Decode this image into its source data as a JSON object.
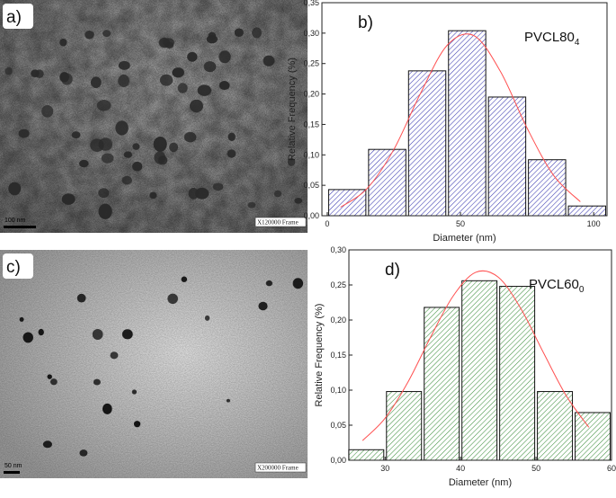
{
  "panels": [
    {
      "label": "a)",
      "scale_bar": "100 nm",
      "magnification": "X120000 Frame"
    },
    {
      "label": "c)",
      "scale_bar": "50 nm",
      "magnification": "X200000 Frame"
    }
  ],
  "chart_data": [
    {
      "type": "histogram",
      "panel_label": "b)",
      "sample": {
        "text": "PVCL80",
        "subscript": "4"
      },
      "xlabel": "Diameter (nm)",
      "ylabel": "Relative Frequency (%)",
      "bins": [
        0,
        15,
        30,
        45,
        60,
        75,
        90,
        105
      ],
      "values": [
        0.043,
        0.109,
        0.238,
        0.304,
        0.195,
        0.092,
        0.016
      ],
      "color": "#3a3ab0",
      "fit": {
        "color": "#ff5050",
        "x": [
          5,
          15,
          25,
          35,
          45,
          55,
          65,
          75,
          85,
          95
        ],
        "values": [
          0.014,
          0.045,
          0.109,
          0.201,
          0.28,
          0.296,
          0.237,
          0.144,
          0.066,
          0.023
        ]
      },
      "xlim": [
        -2,
        105
      ],
      "ylim": [
        0,
        0.35
      ],
      "xticks": [
        0,
        50,
        100
      ],
      "yticks": [
        {
          "value": 0,
          "label": "0,00"
        },
        {
          "value": 0.05,
          "label": "0,05"
        },
        {
          "value": 0.1,
          "label": "0,10"
        },
        {
          "value": 0.15,
          "label": "0,15"
        },
        {
          "value": 0.2,
          "label": "0,20"
        },
        {
          "value": 0.25,
          "label": "0,25"
        },
        {
          "value": 0.3,
          "label": "0,30"
        },
        {
          "value": 0.35,
          "label": "0,35"
        }
      ]
    },
    {
      "type": "histogram",
      "panel_label": "d)",
      "sample": {
        "text": "PVCL60",
        "subscript": "0"
      },
      "xlabel": "Diameter (nm)",
      "ylabel": "Relative Frequency (%)",
      "bins": [
        25,
        30,
        35,
        40,
        45,
        50,
        55,
        60
      ],
      "values": [
        0.015,
        0.098,
        0.218,
        0.256,
        0.248,
        0.098,
        0.068
      ],
      "color": "#3f8f3f",
      "fit": {
        "color": "#ff5050",
        "x": [
          27,
          30,
          33,
          36,
          39,
          42,
          45,
          48,
          51,
          54,
          57
        ],
        "values": [
          0.028,
          0.06,
          0.111,
          0.175,
          0.234,
          0.268,
          0.261,
          0.216,
          0.153,
          0.092,
          0.047
        ]
      },
      "xlim": [
        25.2,
        60
      ],
      "ylim": [
        0,
        0.3
      ],
      "xticks": [
        30,
        40,
        50,
        60
      ],
      "yticks": [
        {
          "value": 0,
          "label": "0,00"
        },
        {
          "value": 0.05,
          "label": "0,05"
        },
        {
          "value": 0.1,
          "label": "0,10"
        },
        {
          "value": 0.15,
          "label": "0,15"
        },
        {
          "value": 0.2,
          "label": "0,20"
        },
        {
          "value": 0.25,
          "label": "0,25"
        },
        {
          "value": 0.3,
          "label": "0,30"
        }
      ]
    }
  ]
}
